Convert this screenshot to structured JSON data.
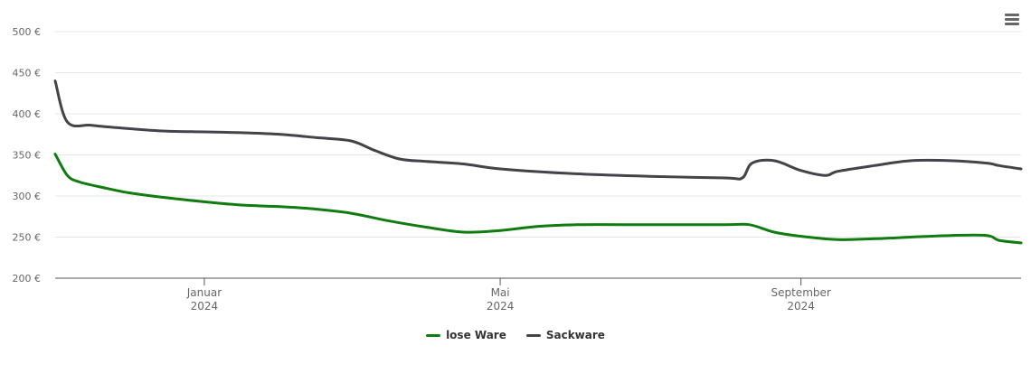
{
  "chart_data": {
    "type": "line",
    "y_ticks": [
      200,
      250,
      300,
      350,
      400,
      450,
      500
    ],
    "y_tick_labels": [
      "200 €",
      "250 €",
      "300 €",
      "350 €",
      "400 €",
      "450 €",
      "500 €"
    ],
    "ylim": [
      200,
      500
    ],
    "xlim": [
      "2023-11-01",
      "2024-11-30"
    ],
    "x_ticks": [
      {
        "date": "2024-01-01",
        "month": "Januar",
        "year": "2024"
      },
      {
        "date": "2024-05-01",
        "month": "Mai",
        "year": "2024"
      },
      {
        "date": "2024-09-01",
        "month": "September",
        "year": "2024"
      }
    ],
    "grid": true,
    "legend_position": "bottom-center",
    "series": [
      {
        "name": "lose Ware",
        "color": "#107c10",
        "points": [
          [
            "2023-11-01",
            351
          ],
          [
            "2023-11-06",
            325
          ],
          [
            "2023-11-11",
            317
          ],
          [
            "2023-11-21",
            310
          ],
          [
            "2023-12-01",
            304
          ],
          [
            "2023-12-16",
            298
          ],
          [
            "2024-01-01",
            293
          ],
          [
            "2024-01-16",
            289
          ],
          [
            "2024-02-01",
            287
          ],
          [
            "2024-02-16",
            284
          ],
          [
            "2024-03-01",
            279
          ],
          [
            "2024-03-16",
            270
          ],
          [
            "2024-04-01",
            262
          ],
          [
            "2024-04-16",
            256
          ],
          [
            "2024-05-01",
            258
          ],
          [
            "2024-05-16",
            263
          ],
          [
            "2024-06-01",
            265
          ],
          [
            "2024-07-01",
            265
          ],
          [
            "2024-08-01",
            265
          ],
          [
            "2024-08-11",
            265
          ],
          [
            "2024-08-21",
            256
          ],
          [
            "2024-09-01",
            251
          ],
          [
            "2024-09-16",
            247
          ],
          [
            "2024-10-01",
            248
          ],
          [
            "2024-10-16",
            250
          ],
          [
            "2024-11-01",
            252
          ],
          [
            "2024-11-16",
            252
          ],
          [
            "2024-11-21",
            246
          ],
          [
            "2024-11-30",
            243
          ]
        ]
      },
      {
        "name": "Sackware",
        "color": "#434348",
        "points": [
          [
            "2023-11-01",
            440
          ],
          [
            "2023-11-06",
            390
          ],
          [
            "2023-11-16",
            386
          ],
          [
            "2023-12-01",
            382
          ],
          [
            "2023-12-16",
            379
          ],
          [
            "2024-01-01",
            378
          ],
          [
            "2024-01-16",
            377
          ],
          [
            "2024-02-01",
            375
          ],
          [
            "2024-02-16",
            371
          ],
          [
            "2024-03-01",
            367
          ],
          [
            "2024-03-11",
            355
          ],
          [
            "2024-03-21",
            345
          ],
          [
            "2024-04-01",
            342
          ],
          [
            "2024-04-16",
            339
          ],
          [
            "2024-05-01",
            333
          ],
          [
            "2024-06-01",
            327
          ],
          [
            "2024-07-01",
            324
          ],
          [
            "2024-08-01",
            322
          ],
          [
            "2024-08-08",
            322
          ],
          [
            "2024-08-12",
            340
          ],
          [
            "2024-08-21",
            343
          ],
          [
            "2024-09-01",
            331
          ],
          [
            "2024-09-11",
            325
          ],
          [
            "2024-09-16",
            330
          ],
          [
            "2024-10-01",
            337
          ],
          [
            "2024-10-16",
            343
          ],
          [
            "2024-11-01",
            343
          ],
          [
            "2024-11-16",
            340
          ],
          [
            "2024-11-21",
            337
          ],
          [
            "2024-11-30",
            333
          ]
        ]
      }
    ]
  },
  "toolbar": {
    "menu_icon": "hamburger-menu-icon"
  }
}
